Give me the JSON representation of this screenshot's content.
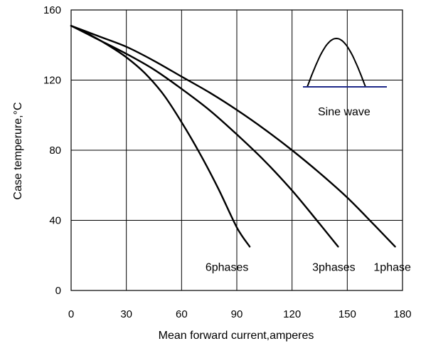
{
  "chart_data": {
    "type": "line",
    "title": "",
    "xlabel": "Mean forward current,amperes",
    "ylabel": "Case temperure,°C",
    "xlim": [
      0,
      180
    ],
    "ylim": [
      0,
      160
    ],
    "xticks": [
      0,
      30,
      60,
      90,
      120,
      150,
      180
    ],
    "yticks": [
      0,
      40,
      80,
      120,
      160
    ],
    "xtick_labels": [
      "0",
      "30",
      "60",
      "90",
      "120",
      "150",
      "180"
    ],
    "ytick_labels": [
      "0",
      "40",
      "80",
      "120",
      "160"
    ],
    "grid": true,
    "series": [
      {
        "name": "1phase",
        "x": [
          0,
          15,
          30,
          45,
          60,
          75,
          90,
          105,
          120,
          135,
          150,
          165,
          176
        ],
        "y": [
          151,
          145,
          139,
          131,
          122,
          113,
          103,
          92,
          80,
          67,
          53,
          37,
          25
        ]
      },
      {
        "name": "3phases",
        "x": [
          0,
          15,
          30,
          45,
          60,
          75,
          90,
          105,
          120,
          135,
          145
        ],
        "y": [
          151,
          143,
          135,
          126,
          115,
          103,
          89,
          74,
          57,
          38,
          25
        ]
      },
      {
        "name": "6phases",
        "x": [
          0,
          10,
          20,
          30,
          40,
          50,
          60,
          70,
          80,
          90,
          97
        ],
        "y": [
          151,
          146,
          140,
          133,
          124,
          112,
          96,
          78,
          58,
          36,
          25
        ]
      }
    ],
    "series_color": "#000000",
    "grid_color": "#000000",
    "inset": {
      "label": "Sine wave",
      "waveform_color": "#000000",
      "baseline_color": "#1f2a8a"
    }
  }
}
